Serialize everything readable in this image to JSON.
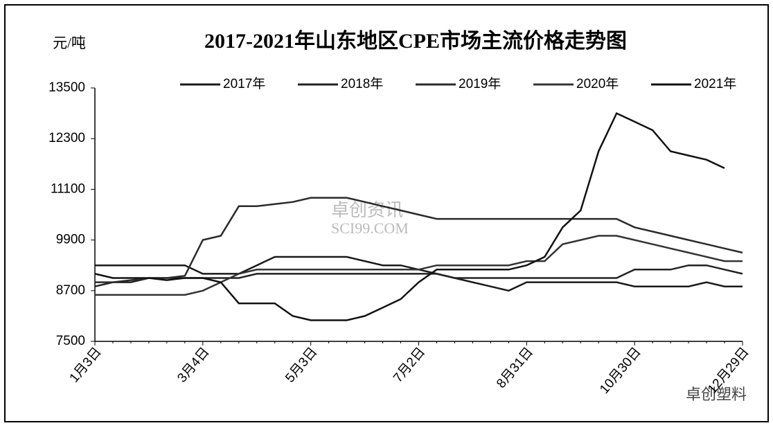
{
  "chart_data": {
    "type": "line",
    "title": "2017-2021年山东地区CPE市场主流价格走势图",
    "y_label": "元/吨",
    "annotations": [
      "卓创资讯",
      "SCI99.COM",
      "卓创塑料"
    ],
    "categories": [
      "1月3日",
      null,
      null,
      null,
      null,
      null,
      "3月4日",
      null,
      null,
      null,
      null,
      null,
      "5月3日",
      null,
      null,
      null,
      null,
      null,
      "7月2日",
      null,
      null,
      null,
      null,
      null,
      "8月31日",
      null,
      null,
      null,
      null,
      null,
      "10月30日",
      null,
      null,
      null,
      null,
      null,
      "12月29日"
    ],
    "ylim": [
      7500,
      13500
    ],
    "yticks": [
      7500,
      8700,
      9900,
      11100,
      12300,
      13500
    ],
    "grid": false,
    "legend": "top",
    "series": [
      {
        "name": "2017年",
        "color": "#1a1a1a",
        "values": [
          9300,
          9300,
          9300,
          9300,
          9300,
          9300,
          9100,
          9100,
          9100,
          9300,
          9500,
          9500,
          9500,
          9500,
          9500,
          9400,
          9300,
          9300,
          9200,
          9100,
          9000,
          8900,
          8800,
          8700,
          8900,
          8900,
          8900,
          8900,
          8900,
          8900,
          8800,
          8800,
          8800,
          8800,
          8900,
          8800,
          8800
        ]
      },
      {
        "name": "2018年",
        "color": "#222222",
        "values": [
          8800,
          8900,
          8900,
          9000,
          9000,
          9000,
          9000,
          9000,
          9000,
          9100,
          9100,
          9100,
          9100,
          9100,
          9100,
          9100,
          9100,
          9100,
          9100,
          9100,
          9000,
          9000,
          9000,
          9000,
          9000,
          9000,
          9000,
          9000,
          9000,
          9000,
          9200,
          9200,
          9200,
          9300,
          9300,
          9200,
          9100
        ]
      },
      {
        "name": "2019年",
        "color": "#2a2a2a",
        "values": [
          8900,
          8900,
          8950,
          9000,
          9000,
          9050,
          9900,
          10000,
          10700,
          10700,
          10750,
          10800,
          10900,
          10900,
          10900,
          10800,
          10700,
          10600,
          10500,
          10400,
          10400,
          10400,
          10400,
          10400,
          10400,
          10400,
          10400,
          10400,
          10400,
          10400,
          10200,
          10100,
          10000,
          9900,
          9800,
          9700,
          9600
        ]
      },
      {
        "name": "2020年",
        "color": "#333333",
        "values": [
          8600,
          8600,
          8600,
          8600,
          8600,
          8600,
          8700,
          8900,
          9100,
          9200,
          9200,
          9200,
          9200,
          9200,
          9200,
          9200,
          9200,
          9200,
          9200,
          9300,
          9300,
          9300,
          9300,
          9300,
          9400,
          9400,
          9800,
          9900,
          10000,
          10000,
          9900,
          9800,
          9700,
          9600,
          9500,
          9400,
          9400
        ]
      },
      {
        "name": "2021年",
        "color": "#111111",
        "values": [
          9100,
          9000,
          9000,
          9000,
          8950,
          9000,
          9000,
          8900,
          8400,
          8400,
          8400,
          8100,
          8000,
          8000,
          8000,
          8100,
          8300,
          8500,
          8900,
          9200,
          9200,
          9200,
          9200,
          9200,
          9300,
          9500,
          10200,
          10600,
          12000,
          12900,
          12700,
          12500,
          12000,
          11900,
          11800,
          11600,
          null
        ]
      }
    ]
  }
}
